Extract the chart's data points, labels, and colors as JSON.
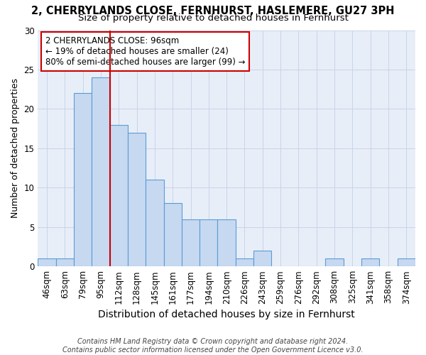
{
  "title": "2, CHERRYLANDS CLOSE, FERNHURST, HASLEMERE, GU27 3PH",
  "subtitle": "Size of property relative to detached houses in Fernhurst",
  "xlabel": "Distribution of detached houses by size in Fernhurst",
  "ylabel": "Number of detached properties",
  "bins": [
    "46sqm",
    "63sqm",
    "79sqm",
    "95sqm",
    "112sqm",
    "128sqm",
    "145sqm",
    "161sqm",
    "177sqm",
    "194sqm",
    "210sqm",
    "226sqm",
    "243sqm",
    "259sqm",
    "276sqm",
    "292sqm",
    "308sqm",
    "325sqm",
    "341sqm",
    "358sqm",
    "374sqm"
  ],
  "bar_values": [
    1,
    1,
    22,
    24,
    18,
    17,
    11,
    8,
    6,
    6,
    6,
    1,
    2,
    0,
    0,
    0,
    1,
    0,
    1,
    0,
    1
  ],
  "bar_color": "#c6d9f1",
  "bar_edge_color": "#5b9bd5",
  "vline_color": "#cc0000",
  "annotation_text": "2 CHERRYLANDS CLOSE: 96sqm\n← 19% of detached houses are smaller (24)\n80% of semi-detached houses are larger (99) →",
  "annotation_box_color": "#ffffff",
  "annotation_box_edge": "#cc0000",
  "ylim": [
    0,
    30
  ],
  "yticks": [
    0,
    5,
    10,
    15,
    20,
    25,
    30
  ],
  "grid_color": "#c8d4e8",
  "bg_color": "#e8eef8",
  "footer": "Contains HM Land Registry data © Crown copyright and database right 2024.\nContains public sector information licensed under the Open Government Licence v3.0.",
  "title_fontsize": 10.5,
  "subtitle_fontsize": 9.5,
  "xlabel_fontsize": 10,
  "ylabel_fontsize": 9,
  "tick_fontsize": 8.5,
  "footer_fontsize": 7,
  "ann_fontsize": 8.5
}
